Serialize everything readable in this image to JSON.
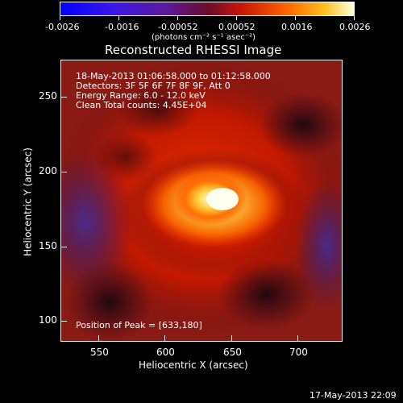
{
  "colorbar": {
    "ticks": [
      "-0.0026",
      "-0.0016",
      "-0.00052",
      "0.00052",
      "0.0016",
      "0.0026"
    ],
    "units": "(photons cm⁻² s⁻¹ asec⁻²)"
  },
  "title": "Reconstructed RHESSI Image",
  "annotations": {
    "time_range": "18-May-2013 01:06:58.000 to 01:12:58.000",
    "detectors": "Detectors: 3F 5F 6F 7F 8F 9F, Att 0",
    "energy": "Energy Range: 6.0 - 12.0 keV",
    "clean": "Clean    Total counts: 4.45E+04",
    "peak": "Position of Peak = [633,180]"
  },
  "axes": {
    "xlabel": "Heliocentric X (arcsec)",
    "ylabel": "Heliocentric Y (arcsec)",
    "xticks": [
      "550",
      "600",
      "650",
      "700"
    ],
    "yticks": [
      "250",
      "200",
      "150",
      "100"
    ]
  },
  "footer": {
    "timestamp": "17-May-2013 22:09"
  },
  "colors": {
    "background": "#000000",
    "text": "#ffffff"
  }
}
